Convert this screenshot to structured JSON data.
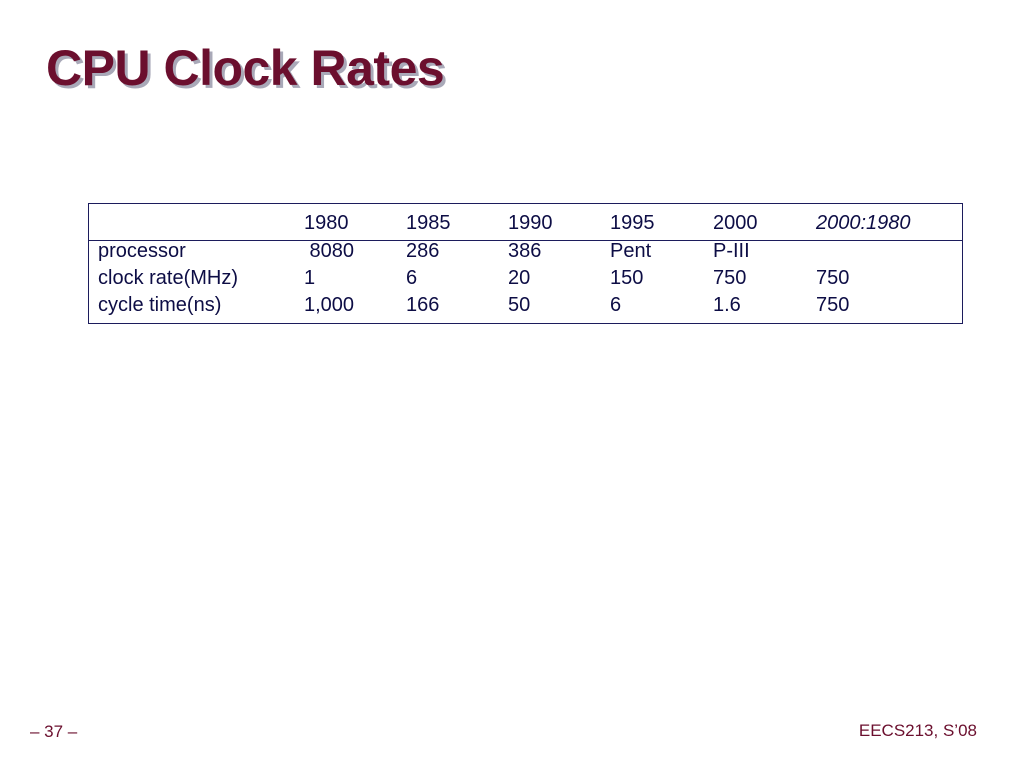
{
  "slide": {
    "title": "CPU Clock Rates"
  },
  "table": {
    "header": [
      "",
      "1980",
      "1985",
      "1990",
      "1995",
      "2000",
      "2000:1980"
    ],
    "rows": [
      [
        "processor",
        " 8080",
        "286",
        "386",
        "Pent",
        "P-III",
        ""
      ],
      [
        "clock rate(MHz)",
        "1",
        "6",
        "20",
        "150",
        "750",
        "750"
      ],
      [
        "cycle time(ns)",
        "1,000",
        "166",
        "50",
        "6",
        "1.6",
        "750"
      ]
    ]
  },
  "footer": {
    "page": "– 37 –",
    "course": "EECS213, S’08"
  },
  "colors": {
    "title": "#6b0f2e",
    "title_shadow": "#a9a9b8",
    "table_text": "#0d0d45",
    "table_border": "#1c1c5c",
    "footer": "#6b0f2e"
  }
}
